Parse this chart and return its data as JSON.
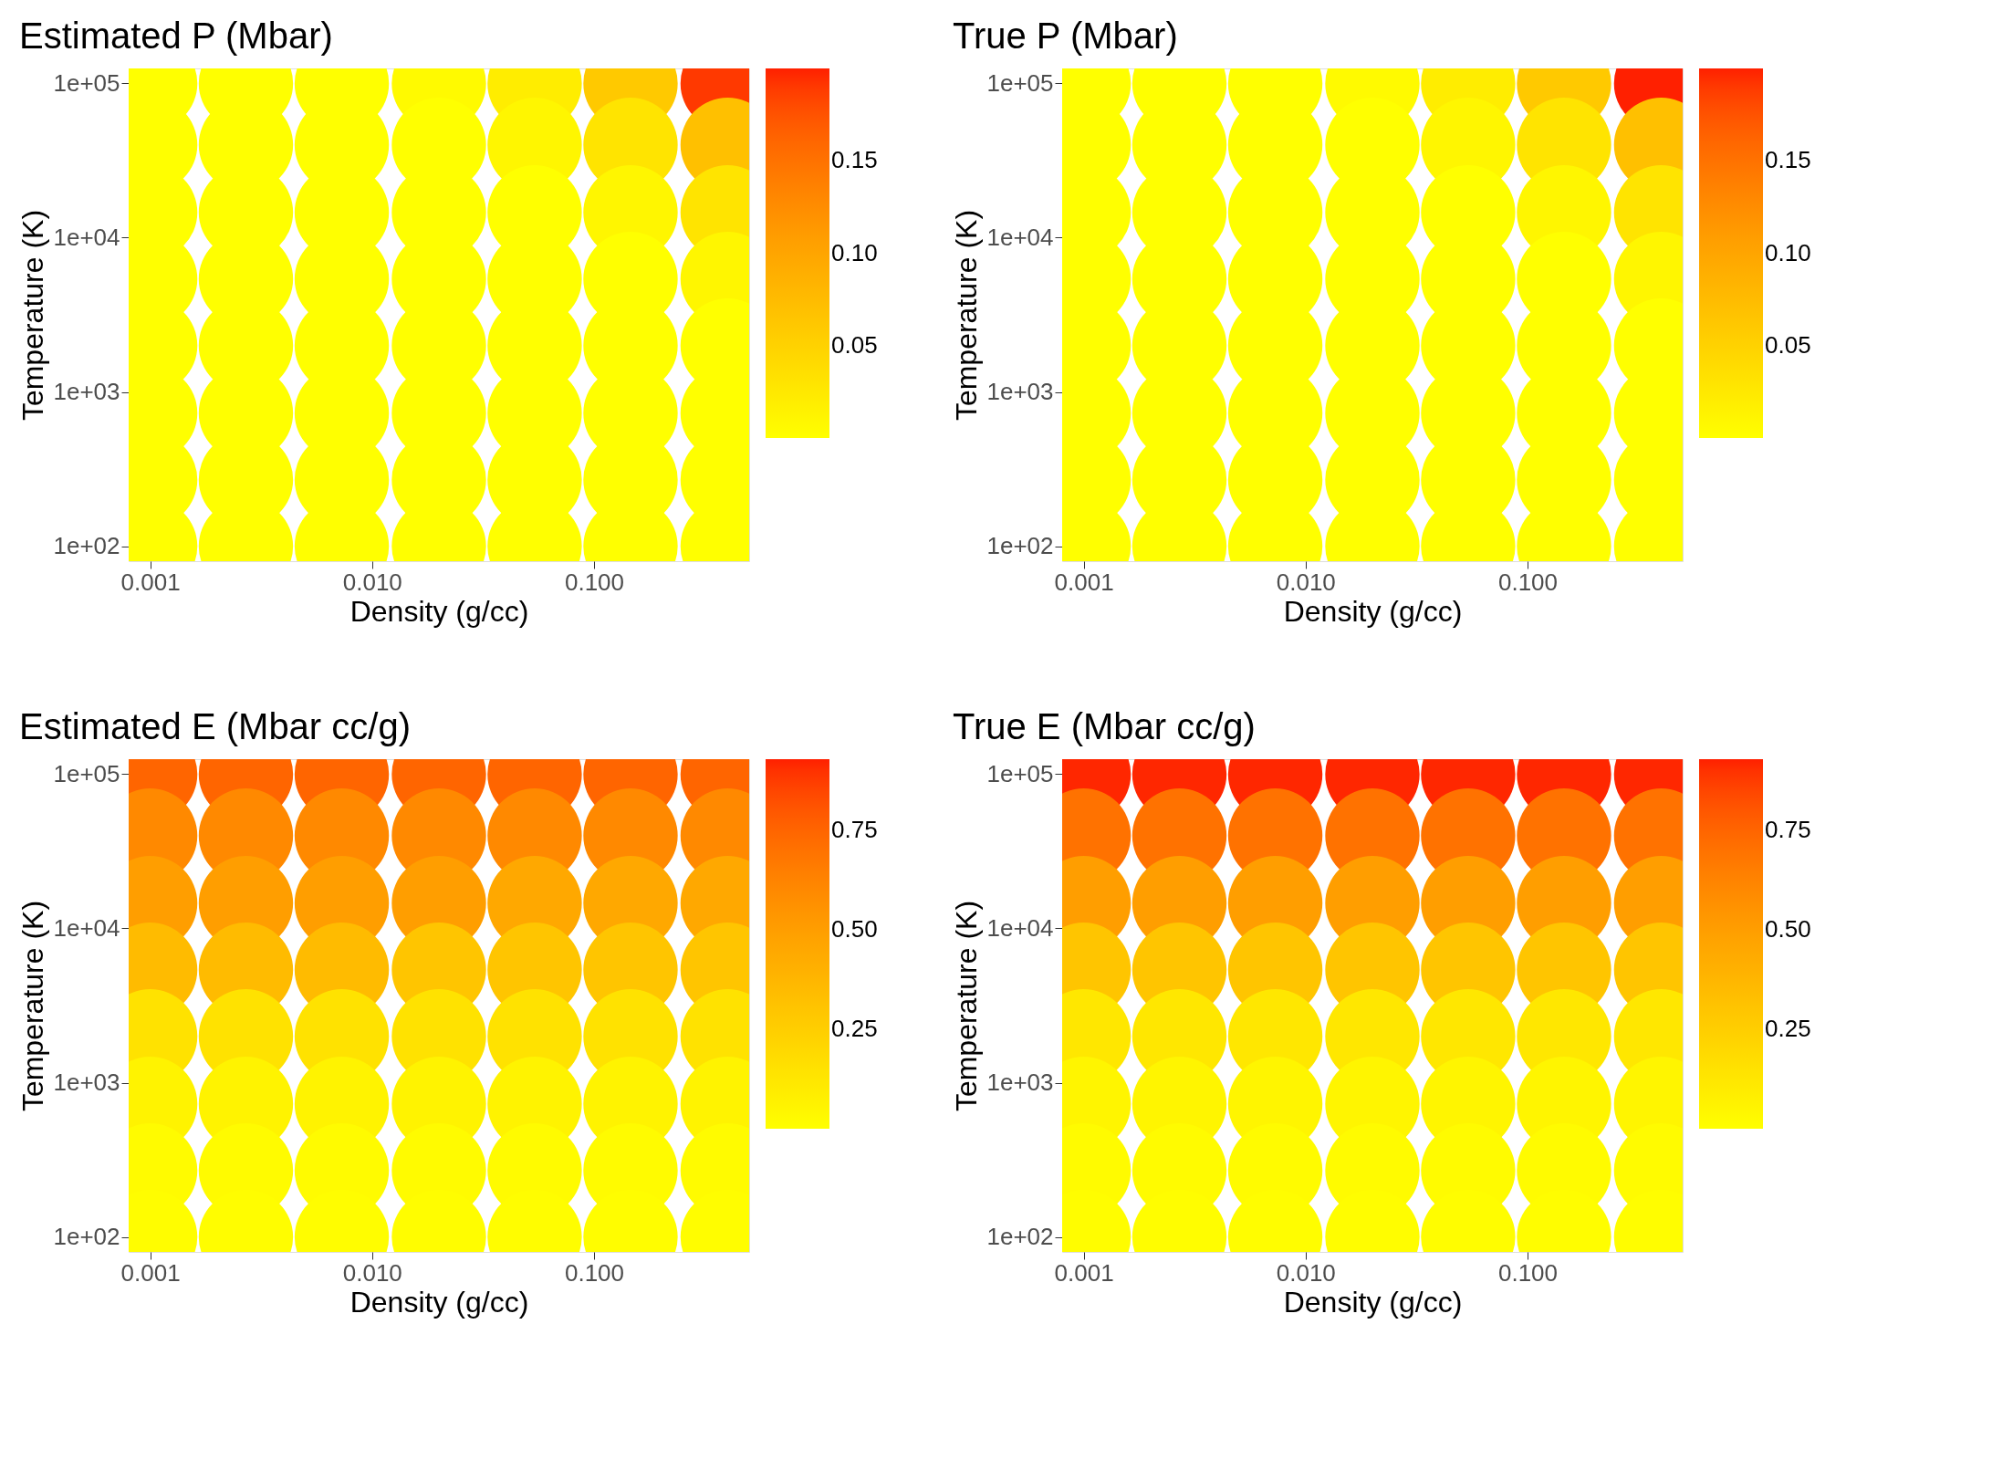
{
  "chart_data": [
    {
      "type": "scatter",
      "title": "Estimated P (Mbar)",
      "xlabel": "Density (g/cc)",
      "ylabel": "Temperature (K)",
      "log": "xy",
      "marker": "circle",
      "grid": false,
      "x": [
        0.001,
        0.0027,
        0.0073,
        0.02,
        0.054,
        0.146,
        0.4,
        0.001,
        0.0027,
        0.0073,
        0.02,
        0.054,
        0.146,
        0.4,
        0.001,
        0.0027,
        0.0073,
        0.02,
        0.054,
        0.146,
        0.4,
        0.001,
        0.0027,
        0.0073,
        0.02,
        0.054,
        0.146,
        0.4,
        0.001,
        0.0027,
        0.0073,
        0.02,
        0.054,
        0.146,
        0.4,
        0.001,
        0.0027,
        0.0073,
        0.02,
        0.054,
        0.146,
        0.4,
        0.001,
        0.0027,
        0.0073,
        0.02,
        0.054,
        0.146,
        0.4,
        0.001,
        0.0027,
        0.0073,
        0.02,
        0.054,
        0.146,
        0.4
      ],
      "values": [
        100000,
        100000,
        100000,
        100000,
        100000,
        100000,
        100000,
        40000,
        40000,
        40000,
        40000,
        40000,
        40000,
        40000,
        14600,
        14600,
        14600,
        14600,
        14600,
        14600,
        14600,
        5400,
        5400,
        5400,
        5400,
        5400,
        5400,
        5400,
        2000,
        2000,
        2000,
        2000,
        2000,
        2000,
        2000,
        730,
        730,
        730,
        730,
        730,
        730,
        730,
        270,
        270,
        270,
        270,
        270,
        270,
        270,
        100,
        100,
        100,
        100,
        100,
        100,
        100
      ],
      "cvalues": [
        0,
        0,
        0,
        0.005,
        0.02,
        0.06,
        0.19,
        0,
        0,
        0,
        0,
        0.01,
        0.03,
        0.07,
        0,
        0,
        0,
        0,
        0,
        0.01,
        0.03,
        0,
        0,
        0,
        0,
        0,
        0,
        0.01,
        0,
        0,
        0,
        0,
        0,
        0,
        0,
        0,
        0,
        0,
        0,
        0,
        0,
        0,
        0,
        0,
        0,
        0,
        0,
        0,
        0,
        0,
        0,
        0,
        0,
        0,
        0,
        0
      ],
      "xlim": [
        0.0008,
        0.5
      ],
      "ylim": [
        80,
        125000
      ],
      "xticks": [
        {
          "value": 0.001,
          "label": "0.001"
        },
        {
          "value": 0.01,
          "label": "0.010"
        },
        {
          "value": 0.1,
          "label": "0.100"
        }
      ],
      "yticks": [
        {
          "value": 100,
          "label": "1e+02"
        },
        {
          "value": 1000,
          "label": "1e+03"
        },
        {
          "value": 10000,
          "label": "1e+04"
        },
        {
          "value": 100000,
          "label": "1e+05"
        }
      ],
      "clim": [
        0,
        0.2
      ],
      "cticks": [
        {
          "value": 0.05,
          "label": "0.05"
        },
        {
          "value": 0.1,
          "label": "0.10"
        },
        {
          "value": 0.15,
          "label": "0.15"
        }
      ]
    },
    {
      "type": "scatter",
      "title": "True P (Mbar)",
      "xlabel": "Density (g/cc)",
      "ylabel": "Temperature (K)",
      "log": "xy",
      "marker": "circle",
      "grid": false,
      "x": [
        0.001,
        0.0027,
        0.0073,
        0.02,
        0.054,
        0.146,
        0.4,
        0.001,
        0.0027,
        0.0073,
        0.02,
        0.054,
        0.146,
        0.4,
        0.001,
        0.0027,
        0.0073,
        0.02,
        0.054,
        0.146,
        0.4,
        0.001,
        0.0027,
        0.0073,
        0.02,
        0.054,
        0.146,
        0.4,
        0.001,
        0.0027,
        0.0073,
        0.02,
        0.054,
        0.146,
        0.4,
        0.001,
        0.0027,
        0.0073,
        0.02,
        0.054,
        0.146,
        0.4,
        0.001,
        0.0027,
        0.0073,
        0.02,
        0.054,
        0.146,
        0.4,
        0.001,
        0.0027,
        0.0073,
        0.02,
        0.054,
        0.146,
        0.4
      ],
      "values": [
        100000,
        100000,
        100000,
        100000,
        100000,
        100000,
        100000,
        40000,
        40000,
        40000,
        40000,
        40000,
        40000,
        40000,
        14600,
        14600,
        14600,
        14600,
        14600,
        14600,
        14600,
        5400,
        5400,
        5400,
        5400,
        5400,
        5400,
        5400,
        2000,
        2000,
        2000,
        2000,
        2000,
        2000,
        2000,
        730,
        730,
        730,
        730,
        730,
        730,
        730,
        270,
        270,
        270,
        270,
        270,
        270,
        270,
        100,
        100,
        100,
        100,
        100,
        100,
        100
      ],
      "cvalues": [
        0,
        0,
        0,
        0.005,
        0.02,
        0.06,
        0.2,
        0,
        0,
        0,
        0,
        0.01,
        0.03,
        0.07,
        0,
        0,
        0,
        0,
        0,
        0.01,
        0.03,
        0,
        0,
        0,
        0,
        0,
        0,
        0.01,
        0,
        0,
        0,
        0,
        0,
        0,
        0,
        0,
        0,
        0,
        0,
        0,
        0,
        0,
        0,
        0,
        0,
        0,
        0,
        0,
        0,
        0,
        0,
        0,
        0,
        0,
        0,
        0
      ],
      "xlim": [
        0.0008,
        0.5
      ],
      "ylim": [
        80,
        125000
      ],
      "xticks": [
        {
          "value": 0.001,
          "label": "0.001"
        },
        {
          "value": 0.01,
          "label": "0.010"
        },
        {
          "value": 0.1,
          "label": "0.100"
        }
      ],
      "yticks": [
        {
          "value": 100,
          "label": "1e+02"
        },
        {
          "value": 1000,
          "label": "1e+03"
        },
        {
          "value": 10000,
          "label": "1e+04"
        },
        {
          "value": 100000,
          "label": "1e+05"
        }
      ],
      "clim": [
        0,
        0.2
      ],
      "cticks": [
        {
          "value": 0.05,
          "label": "0.05"
        },
        {
          "value": 0.1,
          "label": "0.10"
        },
        {
          "value": 0.15,
          "label": "0.15"
        }
      ]
    },
    {
      "type": "scatter",
      "title": "Estimated E (Mbar cc/g)",
      "xlabel": "Density (g/cc)",
      "ylabel": "Temperature (K)",
      "log": "xy",
      "marker": "circle",
      "grid": false,
      "x": [
        0.001,
        0.0027,
        0.0073,
        0.02,
        0.054,
        0.146,
        0.4,
        0.001,
        0.0027,
        0.0073,
        0.02,
        0.054,
        0.146,
        0.4,
        0.001,
        0.0027,
        0.0073,
        0.02,
        0.054,
        0.146,
        0.4,
        0.001,
        0.0027,
        0.0073,
        0.02,
        0.054,
        0.146,
        0.4,
        0.001,
        0.0027,
        0.0073,
        0.02,
        0.054,
        0.146,
        0.4,
        0.001,
        0.0027,
        0.0073,
        0.02,
        0.054,
        0.146,
        0.4,
        0.001,
        0.0027,
        0.0073,
        0.02,
        0.054,
        0.146,
        0.4,
        0.001,
        0.0027,
        0.0073,
        0.02,
        0.054,
        0.146,
        0.4
      ],
      "values": [
        100000,
        100000,
        100000,
        100000,
        100000,
        100000,
        100000,
        40000,
        40000,
        40000,
        40000,
        40000,
        40000,
        40000,
        14600,
        14600,
        14600,
        14600,
        14600,
        14600,
        14600,
        5400,
        5400,
        5400,
        5400,
        5400,
        5400,
        5400,
        2000,
        2000,
        2000,
        2000,
        2000,
        2000,
        2000,
        730,
        730,
        730,
        730,
        730,
        730,
        730,
        270,
        270,
        270,
        270,
        270,
        270,
        270,
        100,
        100,
        100,
        100,
        100,
        100,
        100
      ],
      "cvalues": [
        0.75,
        0.75,
        0.75,
        0.75,
        0.75,
        0.75,
        0.75,
        0.6,
        0.6,
        0.6,
        0.6,
        0.6,
        0.6,
        0.6,
        0.5,
        0.5,
        0.5,
        0.5,
        0.45,
        0.45,
        0.45,
        0.35,
        0.35,
        0.35,
        0.3,
        0.3,
        0.3,
        0.3,
        0.15,
        0.15,
        0.15,
        0.15,
        0.15,
        0.15,
        0.15,
        0.06,
        0.06,
        0.06,
        0.06,
        0.06,
        0.06,
        0.06,
        0.02,
        0.02,
        0.02,
        0.02,
        0.02,
        0.02,
        0.02,
        0.01,
        0.01,
        0.01,
        0.01,
        0.01,
        0.01,
        0.01
      ],
      "xlim": [
        0.0008,
        0.5
      ],
      "ylim": [
        80,
        125000
      ],
      "xticks": [
        {
          "value": 0.001,
          "label": "0.001"
        },
        {
          "value": 0.01,
          "label": "0.010"
        },
        {
          "value": 0.1,
          "label": "0.100"
        }
      ],
      "yticks": [
        {
          "value": 100,
          "label": "1e+02"
        },
        {
          "value": 1000,
          "label": "1e+03"
        },
        {
          "value": 10000,
          "label": "1e+04"
        },
        {
          "value": 100000,
          "label": "1e+05"
        }
      ],
      "clim": [
        0,
        0.93
      ],
      "cticks": [
        {
          "value": 0.25,
          "label": "0.25"
        },
        {
          "value": 0.5,
          "label": "0.50"
        },
        {
          "value": 0.75,
          "label": "0.75"
        }
      ]
    },
    {
      "type": "scatter",
      "title": "True E (Mbar cc/g)",
      "xlabel": "Density (g/cc)",
      "ylabel": "Temperature (K)",
      "log": "xy",
      "marker": "circle",
      "grid": false,
      "x": [
        0.001,
        0.0027,
        0.0073,
        0.02,
        0.054,
        0.146,
        0.4,
        0.001,
        0.0027,
        0.0073,
        0.02,
        0.054,
        0.146,
        0.4,
        0.001,
        0.0027,
        0.0073,
        0.02,
        0.054,
        0.146,
        0.4,
        0.001,
        0.0027,
        0.0073,
        0.02,
        0.054,
        0.146,
        0.4,
        0.001,
        0.0027,
        0.0073,
        0.02,
        0.054,
        0.146,
        0.4,
        0.001,
        0.0027,
        0.0073,
        0.02,
        0.054,
        0.146,
        0.4,
        0.001,
        0.0027,
        0.0073,
        0.02,
        0.054,
        0.146,
        0.4,
        0.001,
        0.0027,
        0.0073,
        0.02,
        0.054,
        0.146,
        0.4
      ],
      "values": [
        100000,
        100000,
        100000,
        100000,
        100000,
        100000,
        100000,
        40000,
        40000,
        40000,
        40000,
        40000,
        40000,
        40000,
        14600,
        14600,
        14600,
        14600,
        14600,
        14600,
        14600,
        5400,
        5400,
        5400,
        5400,
        5400,
        5400,
        5400,
        2000,
        2000,
        2000,
        2000,
        2000,
        2000,
        2000,
        730,
        730,
        730,
        730,
        730,
        730,
        730,
        270,
        270,
        270,
        270,
        270,
        270,
        270,
        100,
        100,
        100,
        100,
        100,
        100,
        100
      ],
      "cvalues": [
        0.92,
        0.92,
        0.92,
        0.92,
        0.92,
        0.92,
        0.92,
        0.7,
        0.7,
        0.7,
        0.7,
        0.7,
        0.7,
        0.7,
        0.5,
        0.5,
        0.5,
        0.5,
        0.5,
        0.5,
        0.5,
        0.3,
        0.3,
        0.3,
        0.3,
        0.3,
        0.3,
        0.3,
        0.12,
        0.12,
        0.12,
        0.12,
        0.12,
        0.12,
        0.12,
        0.05,
        0.05,
        0.05,
        0.05,
        0.05,
        0.05,
        0.05,
        0.02,
        0.02,
        0.02,
        0.02,
        0.02,
        0.02,
        0.02,
        0.01,
        0.01,
        0.01,
        0.01,
        0.01,
        0.01,
        0.01
      ],
      "xlim": [
        0.0008,
        0.5
      ],
      "ylim": [
        80,
        125000
      ],
      "xticks": [
        {
          "value": 0.001,
          "label": "0.001"
        },
        {
          "value": 0.01,
          "label": "0.010"
        },
        {
          "value": 0.1,
          "label": "0.100"
        }
      ],
      "yticks": [
        {
          "value": 100,
          "label": "1e+02"
        },
        {
          "value": 1000,
          "label": "1e+03"
        },
        {
          "value": 10000,
          "label": "1e+04"
        },
        {
          "value": 100000,
          "label": "1e+05"
        }
      ],
      "clim": [
        0,
        0.93
      ],
      "cticks": [
        {
          "value": 0.25,
          "label": "0.25"
        },
        {
          "value": 0.5,
          "label": "0.50"
        },
        {
          "value": 0.75,
          "label": "0.75"
        }
      ]
    }
  ]
}
